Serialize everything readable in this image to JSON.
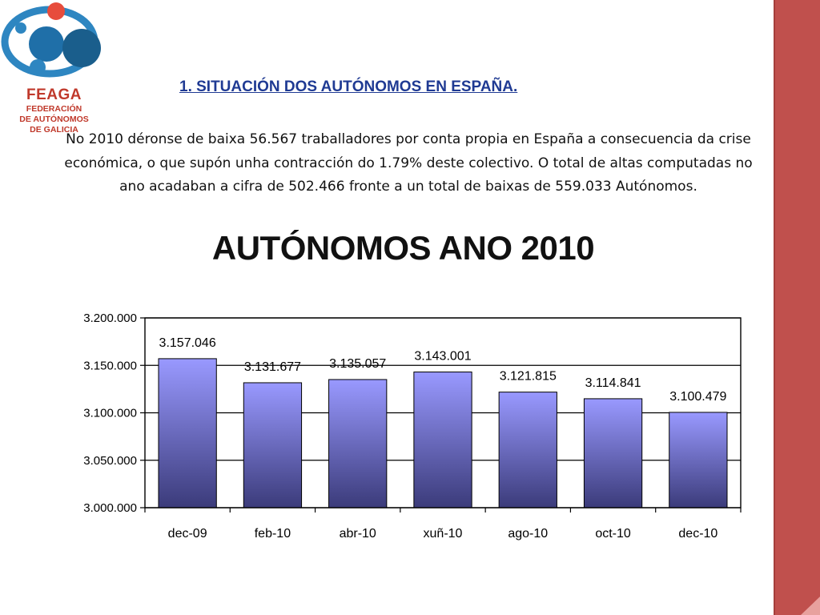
{
  "logo": {
    "name": "FEAGA",
    "subtitle_lines": [
      "FEDERACIÓN",
      "DE AUTÓNOMOS",
      "DE GALICIA"
    ]
  },
  "section_title": "1. SITUACIÓN DOS AUTÓNOMOS EN ESPAÑA.",
  "body_text": "No   2010 déronse de baixa 56.567 traballadores por conta propia en España a consecuencia da crise económica, o que supón unha contracción do 1.79% deste colectivo. O total de altas computadas no ano acadaban a cifra de 502.466 fronte a un total de baixas de 559.033 Autónomos.",
  "colors": {
    "brand_red": "#c0392b",
    "brand_blue": "#1f6fa8",
    "bar_top": "#9999ff",
    "bar_bottom": "#3b3b7a",
    "side_band": "#c0504d"
  },
  "chart_data": {
    "type": "bar",
    "title": "AUTÓNOMOS ANO 2010",
    "categories": [
      "dec-09",
      "feb-10",
      "abr-10",
      "xuñ-10",
      "ago-10",
      "oct-10",
      "dec-10"
    ],
    "values": [
      3157046,
      3131677,
      3135057,
      3143001,
      3121815,
      3114841,
      3100479
    ],
    "value_labels": [
      "3.157.046",
      "3.131.677",
      "3.135.057",
      "3.143.001",
      "3.121.815",
      "3.114.841",
      "3.100.479"
    ],
    "ylim": [
      3000000,
      3200000
    ],
    "y_ticks": [
      3000000,
      3050000,
      3100000,
      3150000,
      3200000
    ],
    "y_tick_labels": [
      "3.000.000",
      "3.050.000",
      "3.100.000",
      "3.150.000",
      "3.200.000"
    ],
    "grid": true,
    "legend": "none"
  }
}
